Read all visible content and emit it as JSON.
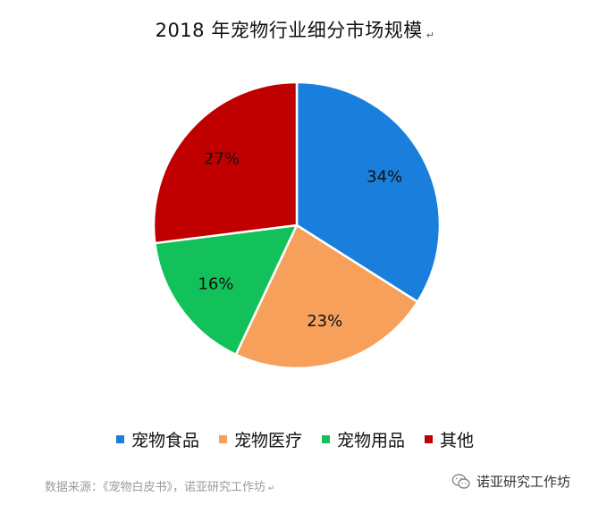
{
  "title": "2018 年宠物行业细分市场规模",
  "return_mark": "↵",
  "chart_data": {
    "type": "pie",
    "title": "2018 年宠物行业细分市场规模",
    "legend_position": "bottom",
    "slices": [
      {
        "name": "宠物食品",
        "value": 34,
        "label": "34%",
        "color": "#1a7fdc"
      },
      {
        "name": "宠物医疗",
        "value": 23,
        "label": "23%",
        "color": "#f6a05c"
      },
      {
        "name": "宠物用品",
        "value": 16,
        "label": "16%",
        "color": "#12c15a"
      },
      {
        "name": "其他",
        "value": 27,
        "label": "27%",
        "color": "#c00000"
      }
    ]
  },
  "source": "数据来源：《宠物白皮书》，诺亚研究工作坊",
  "watermark": {
    "icon": "wechat-icon",
    "text": "诺亚研究工作坊"
  }
}
